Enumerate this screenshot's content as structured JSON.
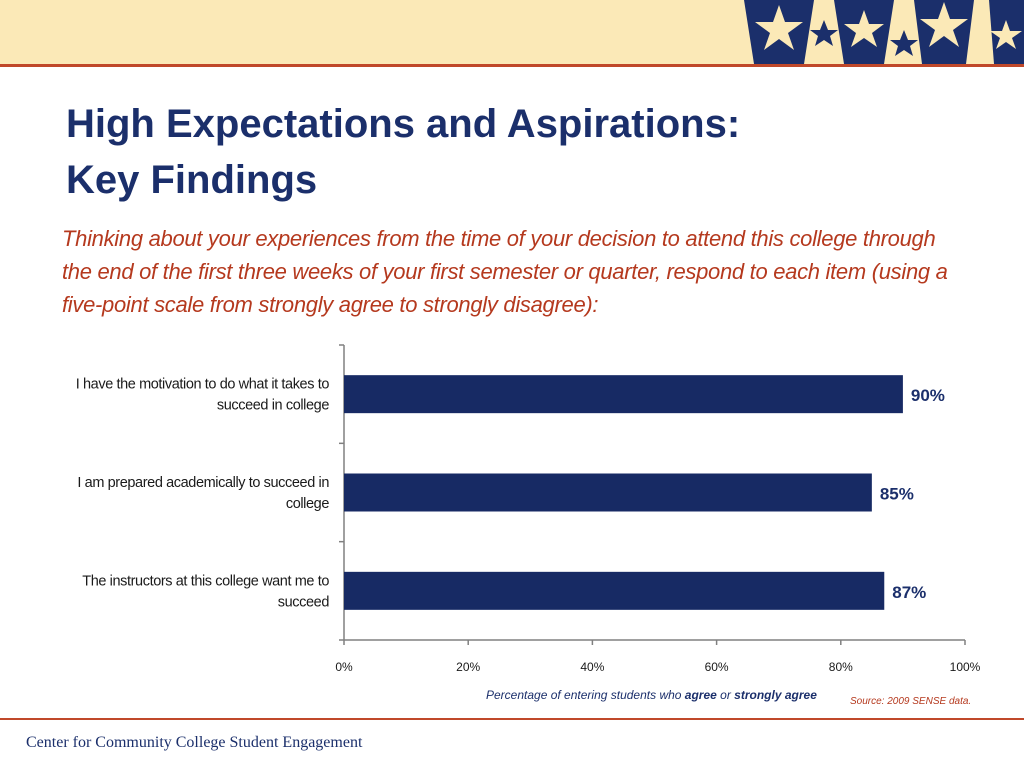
{
  "slide": {
    "title_line1": "High Expectations and Aspirations:",
    "title_line2": "Key Findings",
    "question": "Thinking about your experiences from the time of your decision to attend this college through the end of the first three weeks of your first semester or quarter, respond to each item (using a five-point scale from strongly agree to strongly disagree):",
    "axis_note_prefix": "Percentage of entering students who ",
    "axis_note_agree": "agree",
    "axis_note_or": " or ",
    "axis_note_strong": "strongly agree",
    "source": "Source: 2009 SENSE data.",
    "footer": "Center for Community College Student Engagement"
  },
  "colors": {
    "bar": "#172a64",
    "title": "#1b2f6b",
    "accent": "#b5391e",
    "band": "#fbe9b7",
    "star_dark": "#1b2f6b",
    "star_light": "#fbe9b7"
  },
  "icons": [
    "stars-decoration"
  ],
  "chart_data": {
    "type": "bar",
    "orientation": "horizontal",
    "categories": [
      "I have the motivation to do what it takes to succeed in college",
      "I am prepared academically to succeed in college",
      "The instructors at this college want me to succeed"
    ],
    "category_lines": [
      [
        "I have the motivation to do what it takes to",
        "succeed in college"
      ],
      [
        "I am prepared academically to succeed in",
        "college"
      ],
      [
        "The instructors at this college want me to",
        "succeed"
      ]
    ],
    "values": [
      90,
      85,
      87
    ],
    "value_labels": [
      "90%",
      "85%",
      "87%"
    ],
    "xlim": [
      0,
      100
    ],
    "xticks": [
      "0%",
      "20%",
      "40%",
      "60%",
      "80%",
      "100%"
    ],
    "grid": false,
    "legend": "none"
  }
}
